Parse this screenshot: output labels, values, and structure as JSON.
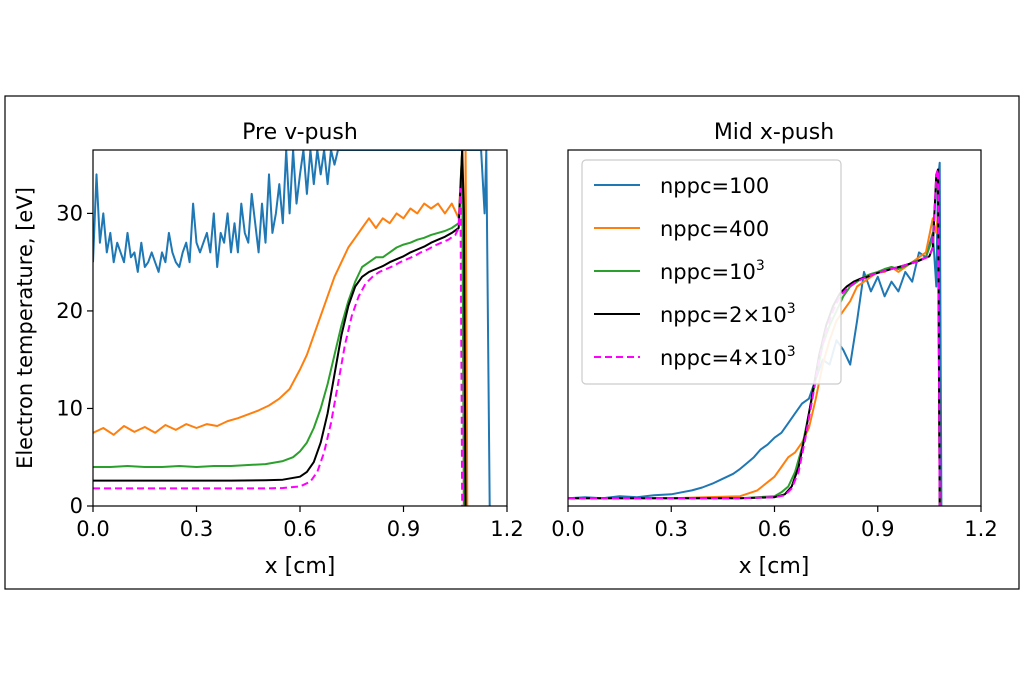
{
  "chart_data": [
    {
      "type": "line",
      "title": "Pre v-push",
      "xlabel": "x [cm]",
      "ylabel": "Electron temperature, [eV]",
      "xlim": [
        0.0,
        1.2
      ],
      "ylim": [
        0,
        36.5
      ],
      "xticks": [
        "0.0",
        "0.3",
        "0.6",
        "0.9",
        "1.2"
      ],
      "yticks": [
        "0",
        "10",
        "20",
        "30"
      ],
      "grid": false,
      "series": [
        {
          "name": "nppc=100",
          "color": "#1f77b4",
          "dash": "solid",
          "x": [
            0.0,
            0.01,
            0.02,
            0.03,
            0.04,
            0.05,
            0.06,
            0.07,
            0.08,
            0.09,
            0.1,
            0.11,
            0.12,
            0.13,
            0.14,
            0.15,
            0.16,
            0.17,
            0.18,
            0.19,
            0.2,
            0.21,
            0.22,
            0.23,
            0.24,
            0.25,
            0.26,
            0.27,
            0.28,
            0.29,
            0.3,
            0.31,
            0.32,
            0.33,
            0.34,
            0.35,
            0.36,
            0.37,
            0.38,
            0.39,
            0.4,
            0.41,
            0.42,
            0.43,
            0.44,
            0.45,
            0.46,
            0.47,
            0.48,
            0.49,
            0.5,
            0.51,
            0.52,
            0.53,
            0.54,
            0.55,
            0.56,
            0.57,
            0.58,
            0.59,
            0.6,
            0.61,
            0.62,
            0.63,
            0.64,
            0.65,
            0.66,
            0.67,
            0.68,
            0.69,
            0.7,
            0.71,
            0.72,
            1.1,
            1.115,
            1.125,
            1.135,
            1.14,
            1.15
          ],
          "y": [
            25,
            34,
            27,
            30,
            26,
            28,
            25,
            27,
            26,
            25,
            28,
            25.5,
            26,
            24,
            27,
            24.5,
            25,
            26,
            25,
            24,
            26,
            25,
            28,
            26,
            25,
            24.5,
            26,
            27,
            25,
            31,
            27,
            26,
            27,
            28,
            26,
            30,
            24.5,
            28,
            27,
            30,
            26,
            29,
            26,
            31,
            28,
            27,
            32,
            29,
            26,
            31,
            27,
            34,
            28,
            30,
            33,
            29,
            36.5,
            30,
            36.5,
            31,
            34,
            36.5,
            32,
            36.5,
            33,
            36.5,
            34,
            36.5,
            33,
            36.5,
            35,
            36.5,
            36.5,
            36.5,
            36.5,
            36.5,
            30,
            36.5,
            0
          ]
        },
        {
          "name": "nppc=400",
          "color": "#ff7f0e",
          "dash": "solid",
          "x": [
            0.0,
            0.03,
            0.06,
            0.09,
            0.12,
            0.15,
            0.18,
            0.21,
            0.24,
            0.27,
            0.3,
            0.33,
            0.36,
            0.39,
            0.42,
            0.45,
            0.48,
            0.51,
            0.54,
            0.57,
            0.6,
            0.62,
            0.64,
            0.66,
            0.68,
            0.7,
            0.72,
            0.74,
            0.76,
            0.78,
            0.8,
            0.82,
            0.84,
            0.86,
            0.88,
            0.9,
            0.92,
            0.94,
            0.96,
            0.98,
            1.0,
            1.02,
            1.04,
            1.06,
            1.07,
            1.075,
            1.08,
            1.085
          ],
          "y": [
            7.5,
            8,
            7.3,
            8.2,
            7.6,
            8.1,
            7.5,
            8.3,
            7.8,
            8.4,
            8.0,
            8.4,
            8.2,
            8.7,
            9.0,
            9.4,
            9.8,
            10.3,
            11.0,
            12.0,
            14.0,
            15.5,
            17.5,
            19.5,
            21.5,
            23.5,
            25,
            26.5,
            27.5,
            28.5,
            29.5,
            28.5,
            29.5,
            29,
            30,
            29.5,
            30.5,
            30,
            31,
            30.5,
            31,
            30,
            31,
            29.5,
            36.5,
            0,
            36.5,
            0
          ]
        },
        {
          "name": "nppc=10^3",
          "color": "#2ca02c",
          "dash": "solid",
          "x": [
            0.0,
            0.05,
            0.1,
            0.15,
            0.2,
            0.25,
            0.3,
            0.35,
            0.4,
            0.45,
            0.5,
            0.55,
            0.58,
            0.6,
            0.62,
            0.64,
            0.66,
            0.68,
            0.7,
            0.72,
            0.74,
            0.76,
            0.78,
            0.8,
            0.82,
            0.84,
            0.86,
            0.88,
            0.9,
            0.92,
            0.94,
            0.96,
            0.98,
            1.0,
            1.02,
            1.04,
            1.06,
            1.07,
            1.075
          ],
          "y": [
            4.0,
            4.0,
            4.1,
            4.0,
            4.0,
            4.1,
            4.0,
            4.1,
            4.1,
            4.2,
            4.3,
            4.6,
            5.0,
            5.6,
            6.5,
            8.0,
            10.0,
            12.5,
            15.5,
            18.5,
            21.0,
            23.0,
            24.5,
            25.0,
            25.5,
            25.5,
            26.0,
            26.5,
            26.8,
            27.0,
            27.3,
            27.5,
            27.8,
            28.0,
            28.2,
            28.5,
            29.0,
            36.5,
            0
          ]
        },
        {
          "name": "nppc=2×10^3",
          "color": "#000000",
          "dash": "solid",
          "x": [
            0.0,
            0.1,
            0.2,
            0.3,
            0.4,
            0.5,
            0.55,
            0.6,
            0.62,
            0.64,
            0.66,
            0.68,
            0.7,
            0.72,
            0.74,
            0.76,
            0.78,
            0.8,
            0.82,
            0.84,
            0.86,
            0.88,
            0.9,
            0.92,
            0.94,
            0.96,
            0.98,
            1.0,
            1.02,
            1.04,
            1.06,
            1.07,
            1.075,
            1.08
          ],
          "y": [
            2.6,
            2.6,
            2.6,
            2.6,
            2.6,
            2.65,
            2.7,
            3.0,
            3.5,
            4.5,
            6.5,
            9.5,
            13.5,
            17.5,
            20.5,
            22.5,
            23.5,
            24.0,
            24.3,
            24.6,
            25.0,
            25.3,
            25.6,
            26.0,
            26.3,
            26.6,
            27.0,
            27.3,
            27.6,
            28.0,
            28.5,
            36.5,
            30,
            0
          ]
        },
        {
          "name": "nppc=4×10^3",
          "color": "#ff00ff",
          "dash": "dashed",
          "x": [
            0.0,
            0.1,
            0.2,
            0.3,
            0.4,
            0.5,
            0.55,
            0.6,
            0.63,
            0.65,
            0.67,
            0.69,
            0.71,
            0.73,
            0.75,
            0.77,
            0.79,
            0.81,
            0.83,
            0.85,
            0.87,
            0.89,
            0.91,
            0.93,
            0.95,
            0.97,
            0.99,
            1.01,
            1.03,
            1.05,
            1.06,
            1.065,
            1.07
          ],
          "y": [
            1.8,
            1.8,
            1.8,
            1.8,
            1.8,
            1.8,
            1.85,
            2.0,
            2.5,
            3.5,
            5.5,
            8.5,
            12.5,
            16.5,
            19.5,
            21.5,
            22.8,
            23.5,
            24.0,
            24.3,
            24.6,
            25.0,
            25.3,
            25.6,
            26.0,
            26.3,
            26.7,
            27.0,
            27.3,
            27.8,
            28.5,
            32.5,
            0
          ]
        }
      ]
    },
    {
      "type": "line",
      "title": "Mid x-push",
      "xlabel": "x [cm]",
      "xlim": [
        0.0,
        1.2
      ],
      "ylim": [
        0,
        36.5
      ],
      "xticks": [
        "0.0",
        "0.3",
        "0.6",
        "0.9",
        "1.2"
      ],
      "grid": false,
      "legend": {
        "position": "top-left",
        "entries": [
          {
            "label": "nppc=100",
            "base": "nppc=100",
            "sup": ""
          },
          {
            "label": "nppc=400",
            "base": "nppc=400",
            "sup": ""
          },
          {
            "label": "nppc=10^3",
            "base": "nppc=10",
            "sup": "3"
          },
          {
            "label": "nppc=2×10^3",
            "base": "nppc=2×10",
            "sup": "3"
          },
          {
            "label": "nppc=4×10^3",
            "base": "nppc=4×10",
            "sup": "3"
          }
        ]
      },
      "series": [
        {
          "name": "nppc=100",
          "color": "#1f77b4",
          "dash": "solid",
          "x": [
            0.0,
            0.05,
            0.1,
            0.15,
            0.2,
            0.25,
            0.3,
            0.33,
            0.36,
            0.39,
            0.42,
            0.45,
            0.48,
            0.5,
            0.52,
            0.54,
            0.56,
            0.58,
            0.6,
            0.62,
            0.64,
            0.66,
            0.68,
            0.7,
            0.72,
            0.74,
            0.76,
            0.78,
            0.8,
            0.82,
            0.84,
            0.86,
            0.88,
            0.9,
            0.92,
            0.94,
            0.96,
            0.98,
            1.0,
            1.02,
            1.04,
            1.06,
            1.07,
            1.075,
            1.08,
            1.085
          ],
          "y": [
            0.8,
            0.9,
            0.8,
            1.0,
            0.9,
            1.1,
            1.2,
            1.4,
            1.6,
            1.9,
            2.3,
            2.8,
            3.3,
            3.8,
            4.4,
            5.0,
            5.8,
            6.3,
            7.0,
            7.5,
            8.5,
            9.5,
            10.5,
            11.0,
            13.0,
            15.0,
            14.5,
            17.0,
            16.0,
            14.5,
            19.0,
            24.0,
            22.0,
            23.5,
            21.5,
            23.0,
            22.0,
            24.0,
            23.0,
            26.0,
            25.5,
            28.0,
            22.5,
            33.5,
            35.2,
            0
          ]
        },
        {
          "name": "nppc=400",
          "color": "#ff7f0e",
          "dash": "solid",
          "x": [
            0.0,
            0.1,
            0.2,
            0.3,
            0.4,
            0.5,
            0.55,
            0.6,
            0.62,
            0.64,
            0.66,
            0.68,
            0.7,
            0.72,
            0.74,
            0.76,
            0.78,
            0.8,
            0.82,
            0.84,
            0.86,
            0.88,
            0.9,
            0.92,
            0.94,
            0.96,
            0.98,
            1.0,
            1.02,
            1.04,
            1.06,
            1.07,
            1.075,
            1.08
          ],
          "y": [
            0.8,
            0.8,
            0.8,
            0.8,
            0.9,
            1.0,
            1.6,
            3.0,
            4.0,
            5.0,
            5.5,
            6.5,
            8.0,
            11.0,
            14.5,
            17.0,
            19.0,
            20.0,
            21.0,
            22.5,
            23.0,
            23.5,
            24.0,
            24.0,
            24.5,
            24.0,
            24.5,
            25.0,
            25.5,
            26.0,
            29.5,
            28.0,
            30.0,
            0
          ]
        },
        {
          "name": "nppc=10^3",
          "color": "#2ca02c",
          "dash": "solid",
          "x": [
            0.0,
            0.1,
            0.2,
            0.3,
            0.4,
            0.5,
            0.55,
            0.6,
            0.62,
            0.64,
            0.66,
            0.68,
            0.7,
            0.72,
            0.74,
            0.76,
            0.78,
            0.8,
            0.82,
            0.84,
            0.86,
            0.88,
            0.9,
            0.92,
            0.94,
            0.96,
            0.98,
            1.0,
            1.02,
            1.04,
            1.06,
            1.07,
            1.075,
            1.08
          ],
          "y": [
            0.8,
            0.8,
            0.8,
            0.8,
            0.8,
            0.8,
            0.9,
            1.0,
            1.4,
            2.0,
            3.5,
            6.0,
            9.5,
            13.0,
            16.5,
            18.5,
            20.0,
            21.5,
            22.5,
            23.0,
            23.5,
            23.8,
            24.0,
            24.3,
            24.5,
            24.3,
            24.6,
            25.0,
            25.2,
            25.5,
            27.5,
            33.0,
            34.0,
            0
          ]
        },
        {
          "name": "nppc=2×10^3",
          "color": "#000000",
          "dash": "solid",
          "x": [
            0.0,
            0.1,
            0.2,
            0.3,
            0.4,
            0.5,
            0.55,
            0.6,
            0.63,
            0.65,
            0.67,
            0.69,
            0.71,
            0.73,
            0.75,
            0.77,
            0.79,
            0.81,
            0.83,
            0.85,
            0.87,
            0.89,
            0.91,
            0.93,
            0.95,
            0.97,
            0.99,
            1.01,
            1.03,
            1.05,
            1.06,
            1.07,
            1.075,
            1.08
          ],
          "y": [
            0.8,
            0.8,
            0.8,
            0.8,
            0.8,
            0.8,
            0.85,
            0.9,
            1.2,
            2.0,
            4.0,
            7.5,
            11.5,
            15.5,
            18.5,
            20.5,
            21.8,
            22.5,
            23.0,
            23.3,
            23.5,
            23.8,
            24.0,
            24.2,
            24.4,
            24.6,
            24.8,
            25.0,
            25.3,
            25.6,
            26.5,
            34.0,
            34.5,
            0
          ]
        },
        {
          "name": "nppc=4×10^3",
          "color": "#ff00ff",
          "dash": "dashed",
          "x": [
            0.0,
            0.1,
            0.2,
            0.3,
            0.4,
            0.5,
            0.55,
            0.6,
            0.63,
            0.65,
            0.67,
            0.69,
            0.71,
            0.73,
            0.75,
            0.77,
            0.79,
            0.81,
            0.83,
            0.85,
            0.87,
            0.89,
            0.91,
            0.93,
            0.95,
            0.97,
            0.99,
            1.01,
            1.03,
            1.05,
            1.06,
            1.07,
            1.075,
            1.08
          ],
          "y": [
            0.8,
            0.8,
            0.8,
            0.8,
            0.8,
            0.8,
            0.85,
            0.9,
            1.1,
            1.8,
            3.5,
            7.0,
            11.0,
            15.0,
            18.0,
            20.0,
            21.5,
            22.3,
            22.8,
            23.2,
            23.5,
            23.8,
            24.0,
            24.2,
            24.4,
            24.6,
            24.8,
            25.0,
            25.3,
            25.6,
            26.5,
            34.0,
            34.5,
            0
          ]
        }
      ]
    }
  ]
}
